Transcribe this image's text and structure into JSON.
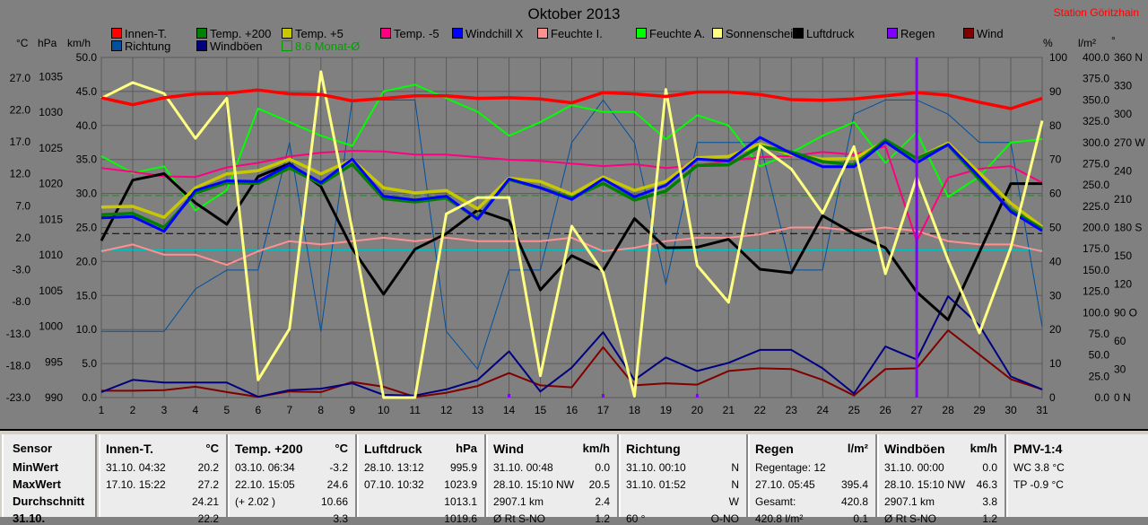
{
  "title": "Oktober 2013",
  "station": "Station Göritzhain",
  "units": {
    "c": "°C",
    "hpa": "hPa",
    "kmh": "km/h",
    "pct": "%",
    "lm2": "l/m²",
    "deg": "°"
  },
  "legend_row1": [
    {
      "label": "Innen-T.",
      "color": "#ff0000"
    },
    {
      "label": "Temp. +200",
      "color": "#008000"
    },
    {
      "label": "Temp. +5",
      "color": "#c8c800"
    },
    {
      "label": "Temp. -5",
      "color": "#ff0080"
    },
    {
      "label": "Windchill X",
      "color": "#0000ff"
    },
    {
      "label": "Feuchte I.",
      "color": "#ff9090"
    },
    {
      "label": "Feuchte A.",
      "color": "#00ff00"
    },
    {
      "label": "Sonnenschein",
      "color": "#ffff80"
    },
    {
      "label": "Luftdruck",
      "color": "#000000"
    },
    {
      "label": "Regen",
      "color": "#8000ff"
    },
    {
      "label": "Wind",
      "color": "#800000"
    }
  ],
  "legend_row2": [
    {
      "label": "Richtung",
      "color": "#0050a0"
    },
    {
      "label": "Windböen",
      "color": "#000080"
    },
    {
      "label": "8.6 Monat-Ø",
      "color": "#00a000",
      "hollow": true
    }
  ],
  "chart_data": {
    "type": "line",
    "title": "Oktober 2013",
    "x": [
      1,
      2,
      3,
      4,
      5,
      6,
      7,
      8,
      9,
      10,
      11,
      12,
      13,
      14,
      15,
      16,
      17,
      18,
      19,
      20,
      21,
      22,
      23,
      24,
      25,
      26,
      27,
      28,
      29,
      30,
      31
    ],
    "x_tick_labels": [
      "1",
      "2",
      "3",
      "4",
      "5",
      "6",
      "7",
      "8",
      "9",
      "10",
      "11",
      "12",
      "13",
      "14",
      "15",
      "16",
      "17",
      "18",
      "19",
      "20",
      "21",
      "22",
      "23",
      "24",
      "25",
      "26",
      "27",
      "28",
      "29",
      "30",
      "31"
    ],
    "axes": {
      "temp_c": {
        "ticks": [
          "27.0",
          "22.0",
          "17.0",
          "12.0",
          "7.0",
          "2.0",
          "-3.0",
          "-8.0",
          "-13.0",
          "-18.0",
          "-23.0"
        ],
        "range": [
          -23,
          30.2
        ]
      },
      "pressure_hpa": {
        "ticks": [
          "1035",
          "1030",
          "1025",
          "1020",
          "1015",
          "1010",
          "1005",
          "1000",
          "995",
          "990"
        ],
        "range": [
          990,
          1037.7
        ]
      },
      "wind_kmh": {
        "ticks": [
          "50.0",
          "45.0",
          "40.0",
          "35.0",
          "30.0",
          "25.0",
          "20.0",
          "15.0",
          "10.0",
          "5.0",
          "0.0"
        ],
        "range": [
          0,
          50
        ]
      },
      "humidity_pct": {
        "ticks": [
          "100",
          "90",
          "80",
          "70",
          "60",
          "50",
          "40",
          "30",
          "20",
          "10",
          "0"
        ],
        "range": [
          0,
          100
        ]
      },
      "rain_lm2": {
        "ticks": [
          "400.0",
          "375.0",
          "350.0",
          "325.0",
          "300.0",
          "275.0",
          "250.0",
          "225.0",
          "200.0",
          "175.0",
          "150.0",
          "125.0",
          "100.0",
          "75.0",
          "50.0",
          "25.0",
          "0.0"
        ],
        "range": [
          0,
          400
        ]
      },
      "direction_deg": {
        "ticks": [
          "360 N",
          "330",
          "300",
          "270 W",
          "240",
          "210",
          "180 S",
          "150",
          "120",
          "90 O",
          "60",
          "30",
          "0 N"
        ],
        "range": [
          0,
          360
        ]
      }
    },
    "grid": true,
    "legend_position": "top",
    "series": [
      {
        "name": "Innen-T.",
        "axis": "temp_c",
        "color": "#ff0000",
        "width": 3.5,
        "values": [
          23.9,
          22.8,
          23.9,
          24.5,
          24.6,
          25.1,
          24.5,
          24.4,
          23.4,
          23.8,
          24.2,
          24.2,
          23.8,
          23.9,
          23.7,
          23.1,
          24.7,
          24.5,
          24.1,
          24.8,
          24.8,
          24.4,
          23.6,
          23.5,
          23.7,
          24.2,
          24.7,
          24.3,
          23.2,
          22.2,
          23.8
        ]
      },
      {
        "name": "Temp. +200",
        "axis": "temp_c",
        "color": "#008000",
        "width": 3.5,
        "values": [
          5.6,
          5.8,
          3.6,
          9.0,
          10.6,
          10.5,
          12.9,
          10.4,
          13.5,
          8.1,
          7.6,
          8.2,
          5.0,
          11.1,
          9.8,
          8.2,
          10.5,
          7.9,
          9.3,
          13.3,
          13.4,
          16.3,
          15.4,
          13.9,
          13.4,
          17.3,
          14.4,
          16.5,
          11.1,
          6.4,
          3.4
        ]
      },
      {
        "name": "Temp. +5",
        "axis": "temp_c",
        "color": "#c8c800",
        "width": 3.5,
        "values": [
          6.8,
          6.9,
          5.2,
          9.8,
          12.0,
          12.5,
          14.3,
          12.0,
          14.2,
          9.8,
          9.0,
          9.4,
          6.5,
          11.3,
          10.8,
          8.8,
          11.5,
          9.4,
          10.8,
          14.5,
          14.7,
          16.7,
          15.0,
          14.3,
          14.4,
          17.1,
          14.4,
          16.8,
          12.1,
          7.4,
          3.7
        ]
      },
      {
        "name": "Temp. -5",
        "axis": "temp_c",
        "color": "#ff0080",
        "width": 2,
        "values": [
          12.9,
          12.3,
          11.6,
          11.5,
          13.0,
          13.7,
          14.7,
          15.3,
          15.6,
          15.5,
          15.0,
          15.0,
          14.6,
          14.2,
          14.0,
          13.6,
          13.2,
          13.5,
          12.9,
          13.3,
          14.0,
          14.6,
          14.8,
          15.4,
          15.0,
          16.3,
          1.5,
          11.4,
          12.8,
          13.2,
          10.6
        ]
      },
      {
        "name": "Windchill X",
        "axis": "temp_c",
        "color": "#0000ff",
        "width": 3,
        "values": [
          5.1,
          5.3,
          3.0,
          9.4,
          10.9,
          10.8,
          13.4,
          10.6,
          14.3,
          8.5,
          7.9,
          8.5,
          4.9,
          11.2,
          9.8,
          8.0,
          11.2,
          8.4,
          10.2,
          14.3,
          14.0,
          17.7,
          15.2,
          13.1,
          13.1,
          17.0,
          13.7,
          16.6,
          11.5,
          6.1,
          3.1
        ]
      },
      {
        "name": "Feuchte I.",
        "axis": "humidity_pct",
        "color": "#ff9090",
        "width": 2,
        "values": [
          43,
          45,
          42,
          42,
          39,
          43,
          46,
          45,
          46,
          47,
          46,
          47,
          46,
          46,
          46,
          47,
          43,
          44,
          46,
          47,
          47,
          48,
          50,
          50,
          49,
          50,
          49,
          46,
          45,
          45,
          43
        ]
      },
      {
        "name": "Feuchte A.",
        "axis": "humidity_pct",
        "color": "#00ff00",
        "width": 2,
        "values": [
          71,
          66,
          68,
          55,
          61,
          85,
          81,
          77,
          74,
          90,
          92,
          88,
          84,
          77,
          81,
          86,
          84,
          84,
          76,
          83,
          80,
          68,
          72,
          77,
          81,
          69,
          78,
          59,
          65,
          75,
          76
        ]
      },
      {
        "name": "Sonnenschein",
        "axis": "wind_kmh",
        "color": "#ffff80",
        "width": 3,
        "values": [
          44.0,
          46.3,
          44.7,
          38.1,
          44.0,
          2.6,
          10.1,
          47.9,
          24.7,
          0.0,
          0.0,
          27.0,
          29.4,
          29.4,
          3.2,
          25.2,
          18.4,
          0.2,
          45.3,
          19.4,
          14.0,
          37.0,
          33.6,
          27.1,
          36.9,
          18.2,
          32.4,
          20.2,
          9.5,
          22.0,
          40.7
        ]
      },
      {
        "name": "Luftdruck",
        "axis": "pressure_hpa",
        "color": "#000000",
        "width": 3,
        "values": [
          1012.0,
          1020.5,
          1021.4,
          1017.3,
          1014.3,
          1021.0,
          1022.8,
          1019.6,
          1010.9,
          1004.5,
          1010.8,
          1013.0,
          1016.3,
          1014.8,
          1005.1,
          1009.9,
          1007.8,
          1015.1,
          1011.0,
          1011.1,
          1012.2,
          1008.0,
          1007.5,
          1015.5,
          1013.0,
          1011.0,
          1004.8,
          1000.9,
          1010.4,
          1020.0,
          1020.0
        ]
      },
      {
        "name": "Richtung",
        "axis": "direction_deg",
        "color": "#0050a0",
        "width": 1,
        "values": [
          70,
          70,
          70,
          115,
          135,
          135,
          270,
          70,
          315,
          315,
          315,
          70,
          30,
          135,
          135,
          270,
          315,
          270,
          120,
          270,
          270,
          270,
          135,
          135,
          300,
          315,
          315,
          300,
          270,
          270,
          75
        ]
      },
      {
        "name": "Windböen",
        "axis": "wind_kmh",
        "color": "#000080",
        "width": 2,
        "values": [
          0.8,
          2.6,
          2.2,
          2.2,
          2.2,
          0.1,
          1.1,
          1.3,
          2.1,
          0.4,
          0.3,
          1.2,
          2.6,
          6.8,
          0.9,
          4.4,
          9.6,
          2.6,
          5.9,
          3.9,
          5.1,
          7.0,
          7.0,
          4.3,
          0.6,
          7.5,
          5.6,
          14.9,
          10.6,
          3.1,
          1.2
        ]
      },
      {
        "name": "Wind",
        "axis": "wind_kmh",
        "color": "#800000",
        "width": 2,
        "values": [
          1.0,
          1.0,
          1.1,
          1.6,
          0.8,
          0.1,
          0.9,
          0.8,
          2.3,
          1.6,
          0.1,
          0.7,
          1.7,
          3.6,
          1.8,
          1.5,
          7.4,
          1.8,
          2.1,
          1.9,
          3.9,
          4.3,
          4.2,
          2.6,
          0.3,
          4.2,
          4.3,
          9.9,
          6.3,
          2.7,
          1.2
        ]
      }
    ],
    "reference_lines": [
      {
        "label": "8.6 Monat-Ø",
        "axis": "temp_c",
        "value": 8.6,
        "color": "#00a000",
        "dash": true
      },
      {
        "axis": "pressure_hpa",
        "value": 1013.0,
        "color": "#000000",
        "dash": true
      },
      {
        "axis": "humidity_pct",
        "value": 43.4,
        "color": "#00c0c0",
        "dash": false
      }
    ],
    "rain_marker": {
      "day": 27,
      "color": "#8000ff"
    }
  },
  "table": {
    "row_labels": [
      "Sensor",
      "MinWert",
      "MaxWert",
      "Durchschnitt",
      "31.10."
    ],
    "panels": [
      {
        "title": "Innen-T.",
        "unit": "°C",
        "rows": [
          [
            "31.10.  04:32",
            "20.2"
          ],
          [
            "17.10.  15:22",
            "27.2"
          ],
          [
            "",
            "24.21"
          ],
          [
            "",
            "22.2"
          ]
        ]
      },
      {
        "title": "Temp. +200",
        "unit": "°C",
        "rows": [
          [
            "03.10.  06:34",
            "-3.2"
          ],
          [
            "22.10.  15:05",
            "24.6"
          ],
          [
            "(+ 2.02 )",
            "10.66"
          ],
          [
            "",
            "3.3"
          ]
        ]
      },
      {
        "title": "Luftdruck",
        "unit": "hPa",
        "rows": [
          [
            "28.10.  13:12",
            "995.9"
          ],
          [
            "07.10.  10:32",
            "1023.9"
          ],
          [
            "",
            "1013.1"
          ],
          [
            "",
            "1019.6"
          ]
        ]
      },
      {
        "title": "Wind",
        "unit": "km/h",
        "rows": [
          [
            "31.10.  00:48",
            "0.0"
          ],
          [
            "28.10.  15:10  NW",
            "20.5"
          ],
          [
            "2907.1 km",
            "2.4"
          ],
          [
            "Ø Rt S-NO",
            "1.2"
          ]
        ]
      },
      {
        "title": "Richtung",
        "unit": "",
        "rows": [
          [
            "31.10.  00:10",
            "N"
          ],
          [
            "31.10.  01:52",
            "N"
          ],
          [
            "",
            "W"
          ],
          [
            "60 °",
            "O-NO"
          ]
        ]
      },
      {
        "title": "Regen",
        "unit": "l/m²",
        "rows": [
          [
            "Regentage: 12",
            ""
          ],
          [
            "27.10.  05:45",
            "395.4"
          ],
          [
            "Gesamt:",
            "420.8"
          ],
          [
            "420.8 l/m²",
            "0.1"
          ]
        ]
      },
      {
        "title": "Windböen",
        "unit": "km/h",
        "rows": [
          [
            "31.10.  00:00",
            "0.0"
          ],
          [
            "28.10.  15:10  NW",
            "46.3"
          ],
          [
            "2907.1 km",
            "3.8"
          ],
          [
            "Ø Rt S-NO",
            "1.2"
          ]
        ]
      },
      {
        "title": "PMV-1:4",
        "unit": "",
        "rows": [
          [
            "WC 3.8 °C",
            ""
          ],
          [
            "TP -0.9 °C",
            ""
          ],
          [
            "",
            ""
          ],
          [
            "",
            ""
          ]
        ]
      }
    ]
  }
}
